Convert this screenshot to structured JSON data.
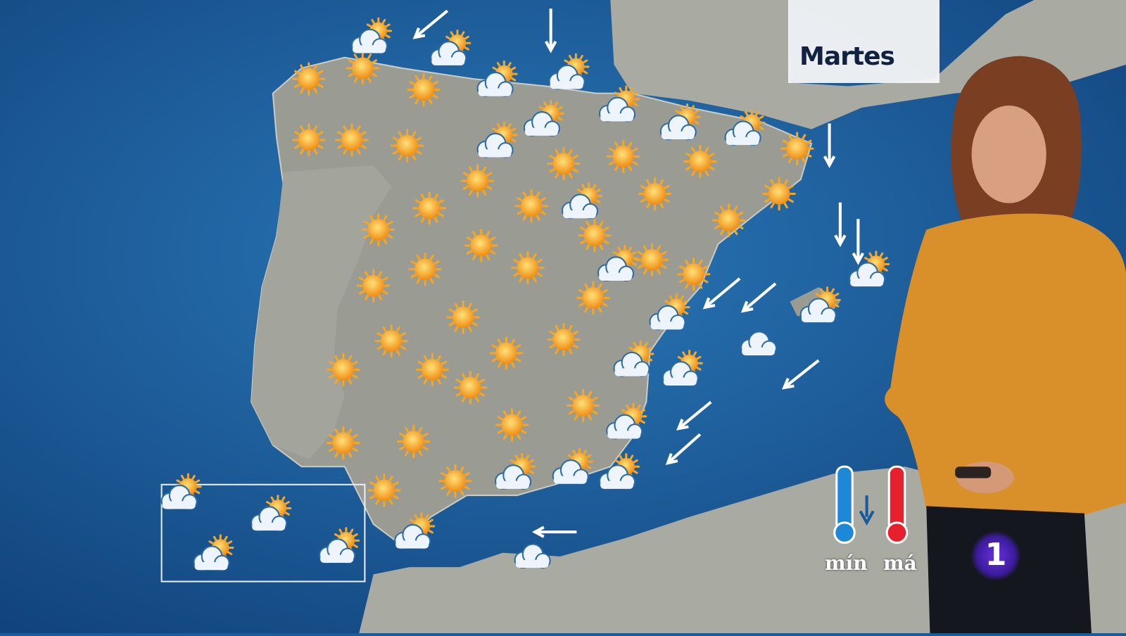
{
  "broadcast": {
    "day_label": "Martes",
    "legend": {
      "min_label": "mín",
      "max_label": "má"
    },
    "channel_logo": "1"
  },
  "colors": {
    "sea": "#1b5c98",
    "land": "#9a9c94",
    "sun": "#f5a623",
    "cloud": "#eef4fb",
    "min_thermo": "#1e88d8",
    "max_thermo": "#e8202e",
    "sweater": "#d98f2a"
  },
  "map": {
    "icons": {
      "sun": 38,
      "cloud-sun": 25,
      "cloud": 2
    },
    "wind_arrows": 11
  }
}
